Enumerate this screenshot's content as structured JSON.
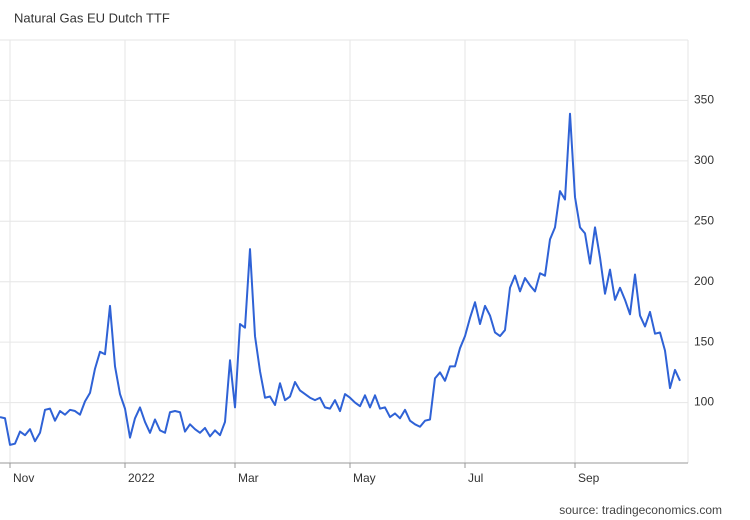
{
  "chart_data": {
    "type": "line",
    "title": "Natural Gas EU Dutch TTF",
    "source": "source: tradingeconomics.com",
    "categories": [
      null,
      null,
      "Nov",
      null,
      null,
      null,
      null,
      null,
      null,
      null,
      null,
      null,
      null,
      null,
      null,
      null,
      null,
      null,
      null,
      null,
      null,
      null,
      null,
      null,
      null,
      "2022",
      null,
      null,
      null,
      null,
      null,
      null,
      null,
      null,
      null,
      null,
      null,
      null,
      null,
      null,
      null,
      null,
      null,
      null,
      null,
      null,
      null,
      "Mar",
      null,
      null,
      null,
      null,
      null,
      null,
      null,
      null,
      null,
      null,
      null,
      null,
      null,
      null,
      null,
      null,
      null,
      null,
      null,
      null,
      null,
      null,
      "May",
      null,
      null,
      null,
      null,
      null,
      null,
      null,
      null,
      null,
      null,
      null,
      null,
      null,
      null,
      null,
      null,
      null,
      null,
      null,
      null,
      null,
      null,
      "Jul",
      null,
      null,
      null,
      null,
      null,
      null,
      null,
      null,
      null,
      null,
      null,
      null,
      null,
      null,
      null,
      null,
      null,
      null,
      null,
      null,
      null,
      "Sep",
      null,
      null,
      null,
      null,
      null,
      null,
      null,
      null,
      null,
      null,
      null,
      null,
      null,
      null,
      null,
      null,
      null,
      null,
      null,
      null,
      null
    ],
    "series": [
      {
        "name": "Natural Gas EU Dutch TTF",
        "color": "#2f62d6",
        "values": [
          88,
          87,
          65,
          66,
          76,
          73,
          78,
          68,
          75,
          94,
          95,
          85,
          93,
          90,
          94,
          93,
          90,
          101,
          108,
          128,
          142,
          140,
          180,
          130,
          107,
          95,
          71,
          87,
          96,
          84,
          75,
          86,
          77,
          75,
          92,
          93,
          92,
          76,
          82,
          78,
          75,
          79,
          72,
          77,
          73,
          84,
          135,
          96,
          165,
          162,
          227,
          155,
          126,
          104,
          105,
          98,
          116,
          102,
          105,
          117,
          110,
          107,
          104,
          102,
          104,
          96,
          95,
          102,
          93,
          107,
          104,
          100,
          97,
          106,
          96,
          106,
          95,
          96,
          88,
          91,
          87,
          94,
          85,
          82,
          80,
          85,
          86,
          120,
          125,
          118,
          130,
          130,
          145,
          155,
          170,
          183,
          165,
          180,
          172,
          158,
          155,
          160,
          195,
          205,
          192,
          203,
          197,
          192,
          207,
          205,
          235,
          245,
          275,
          268,
          339,
          270,
          245,
          240,
          215,
          245,
          220,
          190,
          210,
          185,
          195,
          185,
          173,
          206,
          172,
          163,
          175,
          157,
          158,
          143,
          112,
          127,
          118
        ]
      }
    ],
    "ylim": [
      50,
      400
    ],
    "yticks": [
      100,
      150,
      200,
      250,
      300,
      350
    ],
    "grid": true
  }
}
